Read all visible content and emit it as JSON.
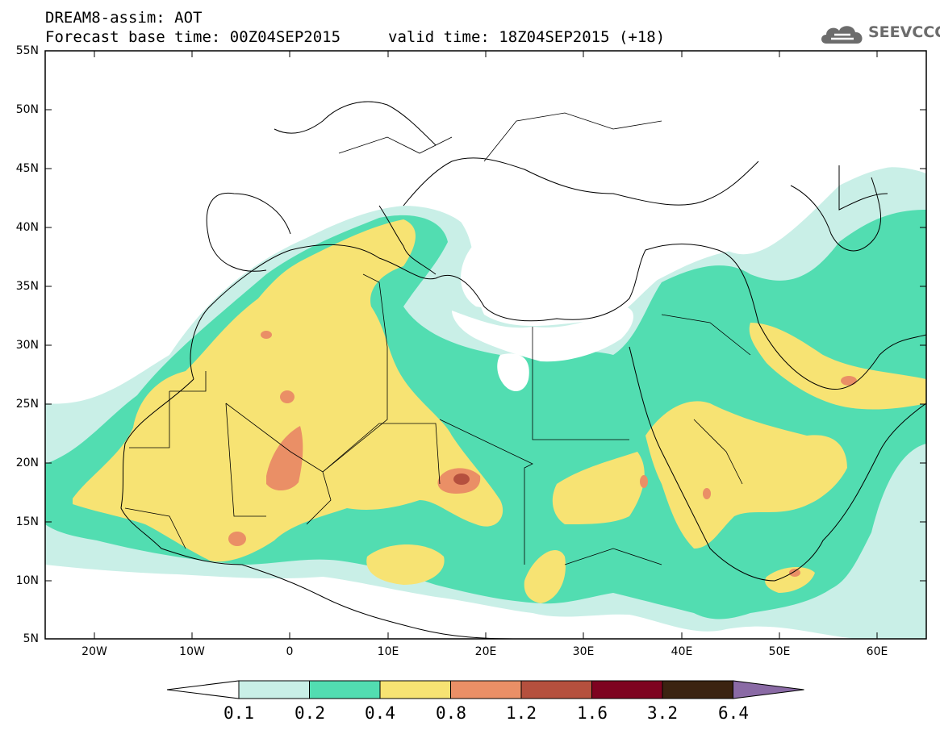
{
  "header": {
    "line1": "DREAM8-assim: AOT",
    "line2": "Forecast base time: 00Z04SEP2015",
    "line2b": "valid time: 18Z04SEP2015 (+18)",
    "logo_text": "SEEVCCC"
  },
  "axes": {
    "lat_labels": [
      "55N",
      "50N",
      "45N",
      "40N",
      "35N",
      "30N",
      "25N",
      "20N",
      "15N",
      "10N",
      "5N"
    ],
    "lon_labels": [
      "20W",
      "10W",
      "0",
      "10E",
      "20E",
      "30E",
      "40E",
      "50E",
      "60E"
    ]
  },
  "colorbar": {
    "labels": [
      "0.1",
      "0.2",
      "0.4",
      "0.8",
      "1.2",
      "1.6",
      "3.2",
      "6.4"
    ],
    "colors": [
      "#ffffff",
      "#c9efe7",
      "#52ddb1",
      "#f7e373",
      "#ea8f66",
      "#b5503e",
      "#7e0320",
      "#3b2311",
      "#8a6aa5"
    ]
  },
  "map_colors": {
    "light": "#c9efe7",
    "green": "#52ddb1",
    "yellow": "#f7e373",
    "orange": "#ea8f66",
    "red": "#b5503e"
  }
}
